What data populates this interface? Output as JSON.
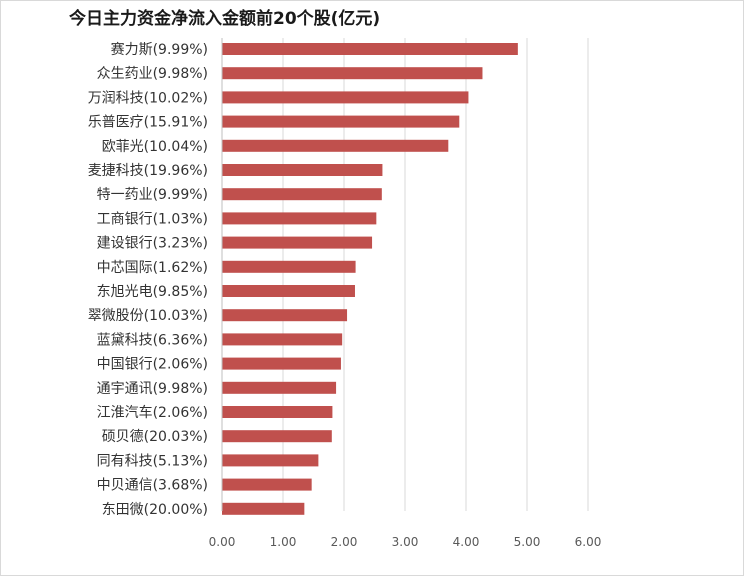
{
  "chart_data": {
    "type": "bar",
    "orientation": "horizontal",
    "title": "今日主力资金净流入金额前20个股(亿元)",
    "xlabel": "",
    "ylabel": "",
    "categories": [
      "赛力斯(9.99%)",
      "众生药业(9.98%)",
      "万润科技(10.02%)",
      "乐普医疗(15.91%)",
      "欧菲光(10.04%)",
      "麦捷科技(19.96%)",
      "特一药业(9.99%)",
      "工商银行(1.03%)",
      "建设银行(3.23%)",
      "中芯国际(1.62%)",
      "东旭光电(9.85%)",
      "翠微股份(10.03%)",
      "蓝黛科技(6.36%)",
      "中国银行(2.06%)",
      "通宇通讯(9.98%)",
      "江淮汽车(2.06%)",
      "硕贝德(20.03%)",
      "同有科技(5.13%)",
      "中贝通信(3.68%)",
      "东田微(20.00%)"
    ],
    "values": [
      4.85,
      4.27,
      4.04,
      3.89,
      3.71,
      2.63,
      2.62,
      2.53,
      2.46,
      2.19,
      2.18,
      2.05,
      1.97,
      1.95,
      1.87,
      1.81,
      1.8,
      1.58,
      1.47,
      1.35
    ],
    "xlim": [
      0,
      6
    ],
    "xticks": [
      "0.00",
      "1.00",
      "2.00",
      "3.00",
      "4.00",
      "5.00",
      "6.00"
    ],
    "grid": true,
    "bar_color": "#c0504d",
    "grid_color": "#d9d9d9"
  }
}
